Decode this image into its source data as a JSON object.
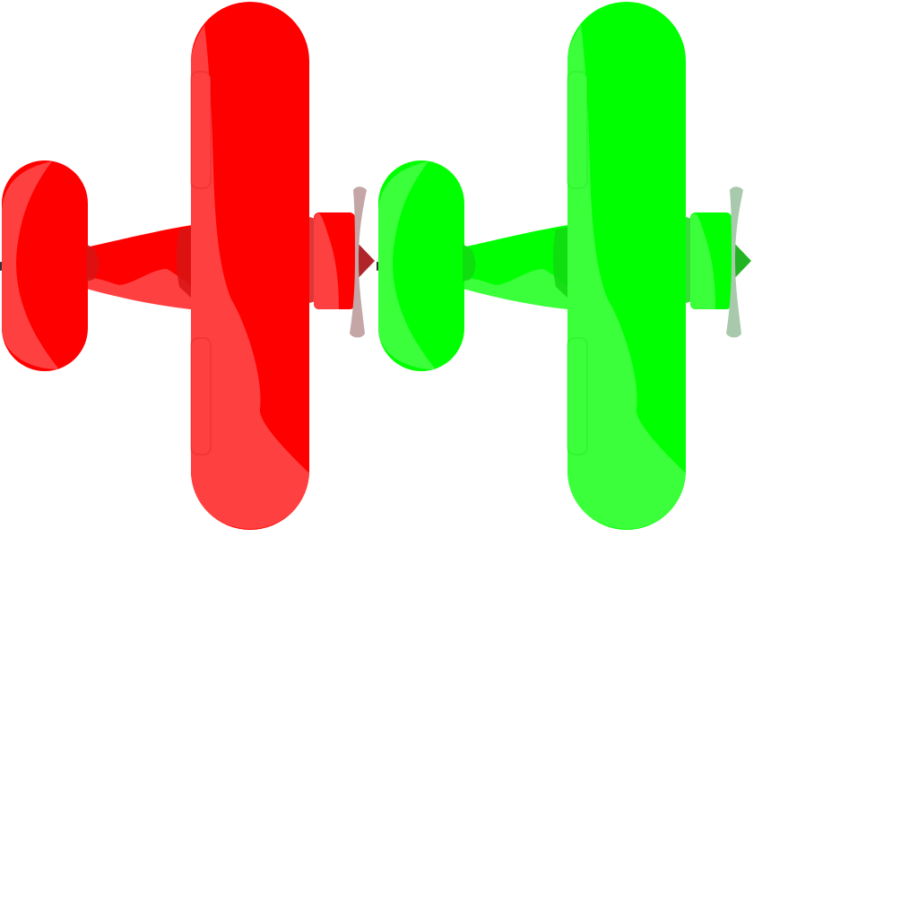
{
  "sprite_sheet": {
    "planes": [
      {
        "name": "red-plane",
        "icon": "plane-icon",
        "colors": {
          "main": "#ff0000",
          "highlight": "#ff4040",
          "shade": "#d81414",
          "nose": "#b0252a",
          "propeller": "#c4a6a6"
        }
      },
      {
        "name": "green-plane",
        "icon": "plane-icon",
        "colors": {
          "main": "#00ff00",
          "highlight": "#3cff3c",
          "shade": "#12d812",
          "nose": "#22b422",
          "propeller": "#a9c9ad"
        }
      }
    ],
    "tail_tip_color": "#333333"
  }
}
